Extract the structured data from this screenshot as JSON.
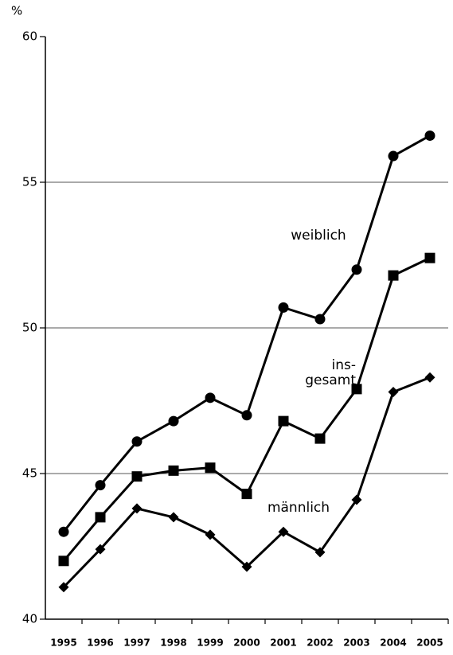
{
  "chart_data": {
    "type": "line",
    "y_unit": "%",
    "categories": [
      "1995",
      "1996",
      "1997",
      "1998",
      "1999",
      "2000",
      "2001",
      "2002",
      "2003",
      "2004",
      "2005"
    ],
    "series": [
      {
        "name": "weiblich",
        "color": "#000000",
        "marker": "circle",
        "values": [
          43.0,
          44.6,
          46.1,
          46.8,
          47.6,
          47.0,
          50.7,
          50.3,
          52.0,
          55.9,
          56.6
        ]
      },
      {
        "name": "ins-\ngesamt",
        "color": "#000000",
        "marker": "square",
        "values": [
          42.0,
          43.5,
          44.9,
          45.1,
          45.2,
          44.3,
          46.8,
          46.2,
          47.9,
          51.8,
          52.4
        ]
      },
      {
        "name": "männlich",
        "color": "#000000",
        "marker": "diamond",
        "values": [
          41.1,
          42.4,
          43.8,
          43.5,
          42.9,
          41.8,
          43.0,
          42.3,
          44.1,
          47.8,
          48.3
        ]
      }
    ],
    "ylim": [
      40,
      60
    ],
    "yticks": [
      40,
      45,
      50,
      55,
      60
    ],
    "grid": true
  }
}
